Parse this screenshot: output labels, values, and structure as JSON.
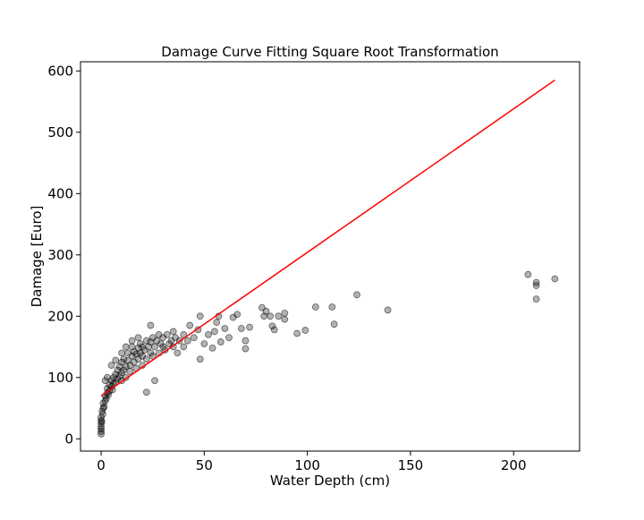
{
  "chart_data": {
    "type": "scatter",
    "title": "Damage Curve Fitting Square Root Transformation",
    "xlabel": "Water Depth (cm)",
    "ylabel": "Damage [Euro]",
    "xlim": [
      -10,
      232
    ],
    "ylim": [
      -20,
      615
    ],
    "x_ticks": [
      0,
      50,
      100,
      150,
      200
    ],
    "y_ticks": [
      0,
      100,
      200,
      300,
      400,
      500,
      600
    ],
    "x_tick_labels": [
      "0",
      "50",
      "100",
      "150",
      "200"
    ],
    "y_tick_labels": [
      "0",
      "100",
      "200",
      "300",
      "400",
      "500",
      "600"
    ],
    "grid": false,
    "legend": "none",
    "series": [
      {
        "type": "scatter",
        "color": "#000000",
        "alpha": 0.3,
        "points": [
          [
            0,
            8
          ],
          [
            0,
            12
          ],
          [
            0,
            16
          ],
          [
            0,
            20
          ],
          [
            0,
            25
          ],
          [
            0,
            30
          ],
          [
            0,
            35
          ],
          [
            0.3,
            28
          ],
          [
            0.5,
            45
          ],
          [
            0.8,
            40
          ],
          [
            1,
            50
          ],
          [
            1,
            58
          ],
          [
            1.5,
            52
          ],
          [
            2,
            62
          ],
          [
            2,
            70
          ],
          [
            2.5,
            66
          ],
          [
            3,
            75
          ],
          [
            3,
            82
          ],
          [
            3.5,
            72
          ],
          [
            4,
            88
          ],
          [
            4,
            78
          ],
          [
            5,
            85
          ],
          [
            5,
            95
          ],
          [
            5.5,
            80
          ],
          [
            6,
            100
          ],
          [
            6,
            90
          ],
          [
            7,
            92
          ],
          [
            7,
            105
          ],
          [
            8,
            98
          ],
          [
            8,
            112
          ],
          [
            9,
            102
          ],
          [
            9,
            118
          ],
          [
            10,
            108
          ],
          [
            10,
            95
          ],
          [
            10,
            125
          ],
          [
            11,
            112
          ],
          [
            11,
            130
          ],
          [
            12,
            118
          ],
          [
            12,
            100
          ],
          [
            13,
            128
          ],
          [
            13,
            140
          ],
          [
            14,
            120
          ],
          [
            14,
            110
          ],
          [
            15,
            135
          ],
          [
            15,
            150
          ],
          [
            16,
            125
          ],
          [
            16,
            142
          ],
          [
            17,
            138
          ],
          [
            17,
            115
          ],
          [
            18,
            148
          ],
          [
            18,
            130
          ],
          [
            19,
            140
          ],
          [
            19,
            155
          ],
          [
            20,
            135
          ],
          [
            20,
            150
          ],
          [
            20,
            120
          ],
          [
            21,
            145
          ],
          [
            22,
            160
          ],
          [
            22,
            130
          ],
          [
            23,
            150
          ],
          [
            24,
            140
          ],
          [
            24,
            158
          ],
          [
            25,
            165
          ],
          [
            25,
            135
          ],
          [
            26,
            150
          ],
          [
            27,
            160
          ],
          [
            28,
            140
          ],
          [
            28,
            170
          ],
          [
            29,
            155
          ],
          [
            30,
            150
          ],
          [
            30,
            165
          ],
          [
            31,
            145
          ],
          [
            32,
            170
          ],
          [
            33,
            155
          ],
          [
            34,
            160
          ],
          [
            35,
            150
          ],
          [
            35,
            175
          ],
          [
            36,
            165
          ],
          [
            37,
            140
          ],
          [
            38,
            160
          ],
          [
            40,
            170
          ],
          [
            40,
            150
          ],
          [
            42,
            160
          ],
          [
            43,
            185
          ],
          [
            45,
            165
          ],
          [
            47,
            178
          ],
          [
            48,
            130
          ],
          [
            48,
            200
          ],
          [
            50,
            155
          ],
          [
            52,
            170
          ],
          [
            54,
            148
          ],
          [
            55,
            175
          ],
          [
            56,
            190
          ],
          [
            57,
            200
          ],
          [
            58,
            158
          ],
          [
            60,
            180
          ],
          [
            62,
            165
          ],
          [
            64,
            198
          ],
          [
            66,
            203
          ],
          [
            68,
            180
          ],
          [
            70,
            160
          ],
          [
            70,
            147
          ],
          [
            72,
            182
          ],
          [
            78,
            214
          ],
          [
            79,
            200
          ],
          [
            80,
            208
          ],
          [
            82,
            200
          ],
          [
            83,
            184
          ],
          [
            84,
            178
          ],
          [
            86,
            200
          ],
          [
            89,
            205
          ],
          [
            89,
            195
          ],
          [
            95,
            172
          ],
          [
            99,
            177
          ],
          [
            104,
            215
          ],
          [
            112,
            215
          ],
          [
            113,
            187
          ],
          [
            124,
            235
          ],
          [
            139,
            210
          ],
          [
            207,
            268
          ],
          [
            211,
            255
          ],
          [
            211,
            250
          ],
          [
            211,
            228
          ],
          [
            220,
            261
          ],
          [
            22,
            76
          ],
          [
            26,
            95
          ],
          [
            5,
            120
          ],
          [
            7,
            128
          ],
          [
            10,
            140
          ],
          [
            12,
            150
          ],
          [
            15,
            160
          ],
          [
            18,
            165
          ],
          [
            24,
            185
          ],
          [
            3,
            100
          ],
          [
            2,
            95
          ]
        ]
      },
      {
        "type": "line",
        "color": "#ff0000",
        "points": [
          [
            0,
            70
          ],
          [
            220,
            585
          ]
        ]
      }
    ]
  }
}
